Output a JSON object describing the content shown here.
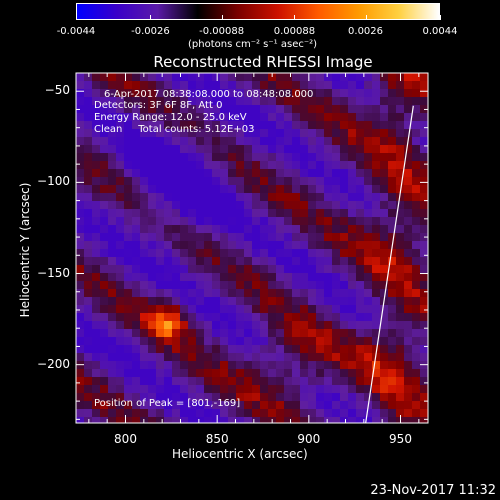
{
  "colorbar": {
    "tick_labels": [
      "-0.0044",
      "-0.0026",
      "-0.00088",
      "0.00088",
      "0.0026",
      "0.0044"
    ],
    "tick_values": [
      -0.0044,
      -0.0026,
      -0.00088,
      0.00088,
      0.0026,
      0.0044
    ],
    "unit_html": "(photons cm⁻² s⁻¹ asec⁻²)",
    "colors": [
      "#0000ff",
      "#3a00c8",
      "#5a1aa8",
      "#000000",
      "#7a0000",
      "#cc1100",
      "#ff5a00",
      "#ff9a00",
      "#ffd040",
      "#ffffff"
    ]
  },
  "chart_data": {
    "type": "heatmap",
    "title": "Reconstructed RHESSI Image",
    "xlabel": "Heliocentric X (arcsec)",
    "ylabel": "Heliocentric Y (arcsec)",
    "xlim": [
      773,
      965
    ],
    "ylim": [
      -232,
      -40
    ],
    "x_ticks": [
      800,
      850,
      900,
      950
    ],
    "y_ticks": [
      -50,
      -100,
      -150,
      -200
    ],
    "annotations": [
      "6-Apr-2017 08:38:08.000 to 08:48:08.000",
      "Detectors: 3F 6F 8F, Att 0",
      "Energy Range: 12.0 - 25.0 keV",
      "Clean     Total counts: 5.12E+03"
    ],
    "peak_label": "Position of Peak = [801,-169]",
    "peak": [
      801,
      -169
    ],
    "limb_line": [
      [
        931,
        -232
      ],
      [
        957,
        -58
      ]
    ],
    "grid": false
  },
  "footer": {
    "timestamp": "23-Nov-2017 11:32"
  }
}
